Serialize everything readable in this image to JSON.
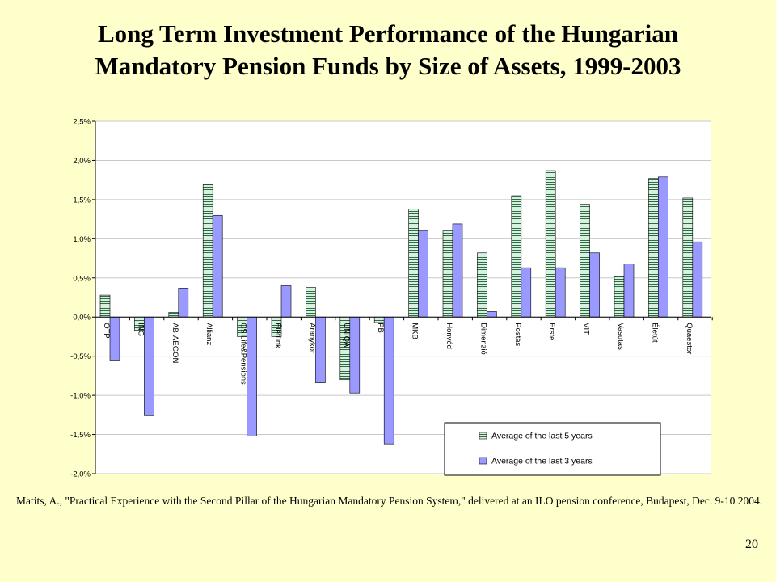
{
  "slide": {
    "citation": "Matits, A., \"Practical Experience  with the Second Pillar of the Hungarian Mandatory Pension System,\" delivered at an ILO pension conference, Budapest, Dec. 9-10 2004.",
    "page_number": "20"
  },
  "chart_data": {
    "type": "bar",
    "title": "Long Term Investment Performance of the Hungarian Mandatory Pension Funds by Size of Assets, 1999-2003",
    "xlabel": "",
    "ylabel": "",
    "ylim": [
      -0.02,
      0.025
    ],
    "yticks": [
      0.025,
      0.02,
      0.015,
      0.01,
      0.005,
      0,
      -0.005,
      -0.01,
      -0.015,
      -0.02
    ],
    "ytick_labels": [
      "2,5%",
      "2,0%",
      "1,5%",
      "1,0%",
      "0,5%",
      "0,0%",
      "-0,5%",
      "-1,0%",
      "-1,5%",
      "-2,0%"
    ],
    "grid": true,
    "legend_position": "bottom-right",
    "categories": [
      "OTP",
      "ING",
      "AB-AEGON",
      "Allianz",
      "CS Life&Pensions",
      "Életünk",
      "Aranykor",
      "UNIQA",
      "PB",
      "MKB",
      "Honvéd",
      "Dimenzió",
      "Postás",
      "Erste",
      "VIT",
      "Vasutas",
      "Életút",
      "Quaestor"
    ],
    "series": [
      {
        "name": "Average of the last 5 years",
        "color": "#c6e6d2",
        "values": [
          0.0028,
          -0.0018,
          0.0006,
          0.0169,
          -0.0025,
          -0.0025,
          0.0038,
          -0.008,
          -0.0007,
          0.0138,
          0.011,
          0.0082,
          0.0155,
          0.0187,
          0.0144,
          0.0052,
          0.0177,
          0.0152
        ]
      },
      {
        "name": "Average of the last 3 years",
        "color": "#9999ff",
        "values": [
          -0.0055,
          -0.0126,
          0.0037,
          0.013,
          -0.0152,
          0.004,
          -0.0084,
          -0.0097,
          -0.0162,
          0.011,
          0.0119,
          0.0007,
          0.0063,
          0.0063,
          0.0082,
          0.0068,
          0.0179,
          0.0096
        ]
      }
    ]
  }
}
